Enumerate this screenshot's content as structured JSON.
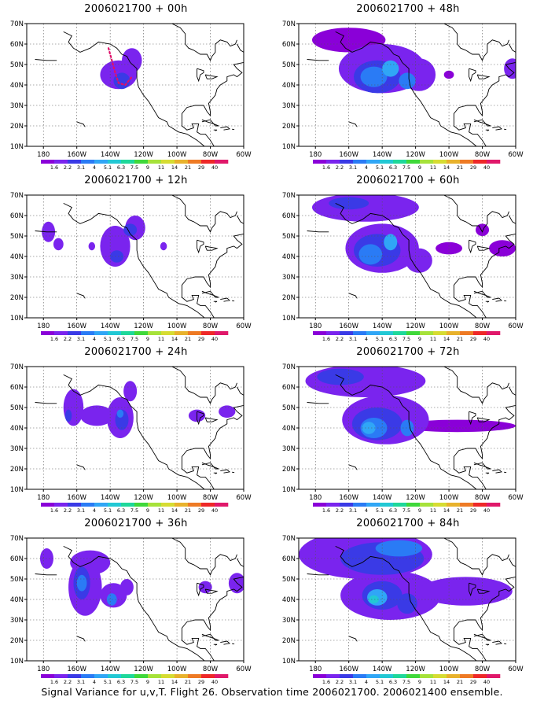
{
  "footer": "Signal Variance for u,v,T. Flight 26. Observation time 2006021700. 2006021400 ensemble.",
  "colors": {
    "contours": [
      "#8a00d8",
      "#7a24ee",
      "#3a3ae6",
      "#2a7bf5",
      "#30a6f6",
      "#22c8d4",
      "#1ed89a",
      "#3fd83a",
      "#a6e23a",
      "#d6dc32",
      "#e8b22c",
      "#ee7a24",
      "#ee2828",
      "#e0186a"
    ],
    "coast": "#000000",
    "grid": "#555555",
    "flight_track": "#e0106a"
  },
  "colorbar_labels": [
    "1.6",
    "2.2",
    "3.1",
    "4",
    "5.1",
    "6.3",
    "7.5",
    "9",
    "11",
    "14",
    "21",
    "29",
    "40"
  ],
  "axes": {
    "x_ticks": [
      "180",
      "160W",
      "140W",
      "120W",
      "100W",
      "80W",
      "60W"
    ],
    "y_ticks": [
      "70N",
      "60N",
      "50N",
      "40N",
      "30N",
      "20N",
      "10N"
    ]
  },
  "panels": [
    {
      "title": "2006021700 + 00h"
    },
    {
      "title": "2006021700 + 48h"
    },
    {
      "title": "2006021700 + 12h"
    },
    {
      "title": "2006021700 + 60h"
    },
    {
      "title": "2006021700 + 24h"
    },
    {
      "title": "2006021700 + 72h"
    },
    {
      "title": "2006021700 + 36h"
    },
    {
      "title": "2006021700 + 84h"
    }
  ],
  "chart_data": {
    "type": "heatmap",
    "xlim": [
      "180",
      "60W"
    ],
    "ylim": [
      "10N",
      "70N"
    ],
    "grid": true,
    "colorbar_levels": [
      1.6,
      2.2,
      3.1,
      4,
      5.1,
      6.3,
      7.5,
      9,
      11,
      14,
      21,
      29,
      40
    ],
    "panels": [
      {
        "title": "2006021700 + 00h",
        "blobs": [
          {
            "lon": -135,
            "lat": 45,
            "rlon": 11,
            "rlat": 7,
            "level": 1
          },
          {
            "lon": -127,
            "lat": 52,
            "rlon": 6,
            "rlat": 6,
            "level": 1
          },
          {
            "lon": -133,
            "lat": 42,
            "rlon": 5,
            "rlat": 4,
            "level": 2
          }
        ],
        "track": [
          [
            -141,
            58
          ],
          [
            -139,
            52
          ],
          [
            -137,
            46
          ],
          [
            -135,
            41
          ],
          [
            -131,
            40
          ],
          [
            -127,
            44
          ]
        ]
      },
      {
        "title": "2006021700 + 48h",
        "blobs": [
          {
            "lon": -160,
            "lat": 62,
            "rlon": 22,
            "rlat": 6,
            "level": 0
          },
          {
            "lon": -140,
            "lat": 48,
            "rlon": 26,
            "rlat": 12,
            "level": 1
          },
          {
            "lon": -118,
            "lat": 45,
            "rlon": 10,
            "rlat": 8,
            "level": 1
          },
          {
            "lon": -143,
            "lat": 44,
            "rlon": 14,
            "rlat": 8,
            "level": 2
          },
          {
            "lon": -145,
            "lat": 44,
            "rlon": 8,
            "rlat": 5,
            "level": 3
          },
          {
            "lon": -135,
            "lat": 48,
            "rlon": 5,
            "rlat": 4,
            "level": 4
          },
          {
            "lon": -125,
            "lat": 42,
            "rlon": 5,
            "rlat": 4,
            "level": 3
          },
          {
            "lon": -100,
            "lat": 45,
            "rlon": 3,
            "rlat": 2,
            "level": 0
          },
          {
            "lon": -62,
            "lat": 48,
            "rlon": 5,
            "rlat": 5,
            "level": 1
          }
        ]
      },
      {
        "title": "2006021700 + 12h",
        "blobs": [
          {
            "lon": -177,
            "lat": 52,
            "rlon": 4,
            "rlat": 5,
            "level": 1
          },
          {
            "lon": -171,
            "lat": 46,
            "rlon": 3,
            "rlat": 3,
            "level": 1
          },
          {
            "lon": -137,
            "lat": 45,
            "rlon": 9,
            "rlat": 10,
            "level": 1
          },
          {
            "lon": -125,
            "lat": 54,
            "rlon": 6,
            "rlat": 6,
            "level": 1
          },
          {
            "lon": -136,
            "lat": 40,
            "rlon": 4,
            "rlat": 3,
            "level": 2
          },
          {
            "lon": -128,
            "lat": 53,
            "rlon": 4,
            "rlat": 3,
            "level": 2
          },
          {
            "lon": -151,
            "lat": 45,
            "rlon": 2,
            "rlat": 2,
            "level": 1
          },
          {
            "lon": -108,
            "lat": 45,
            "rlon": 2,
            "rlat": 2,
            "level": 1
          }
        ]
      },
      {
        "title": "2006021700 + 60h",
        "blobs": [
          {
            "lon": -150,
            "lat": 64,
            "rlon": 32,
            "rlat": 7,
            "level": 1
          },
          {
            "lon": -140,
            "lat": 44,
            "rlon": 22,
            "rlat": 12,
            "level": 1
          },
          {
            "lon": -118,
            "lat": 38,
            "rlon": 8,
            "rlat": 6,
            "level": 1
          },
          {
            "lon": -143,
            "lat": 43,
            "rlon": 14,
            "rlat": 8,
            "level": 2
          },
          {
            "lon": -147,
            "lat": 41,
            "rlon": 7,
            "rlat": 5,
            "level": 3
          },
          {
            "lon": -135,
            "lat": 47,
            "rlon": 4,
            "rlat": 4,
            "level": 4
          },
          {
            "lon": -160,
            "lat": 66,
            "rlon": 12,
            "rlat": 3,
            "level": 2
          },
          {
            "lon": -100,
            "lat": 44,
            "rlon": 8,
            "rlat": 3,
            "level": 0
          },
          {
            "lon": -80,
            "lat": 53,
            "rlon": 4,
            "rlat": 3,
            "level": 0
          },
          {
            "lon": -68,
            "lat": 44,
            "rlon": 8,
            "rlat": 4,
            "level": 0
          }
        ]
      },
      {
        "title": "2006021700 + 24h",
        "blobs": [
          {
            "lon": -162,
            "lat": 50,
            "rlon": 6,
            "rlat": 9,
            "level": 1
          },
          {
            "lon": -148,
            "lat": 46,
            "rlon": 10,
            "rlat": 5,
            "level": 1
          },
          {
            "lon": -134,
            "lat": 45,
            "rlon": 8,
            "rlat": 10,
            "level": 1
          },
          {
            "lon": -128,
            "lat": 58,
            "rlon": 4,
            "rlat": 5,
            "level": 1
          },
          {
            "lon": -165,
            "lat": 46,
            "rlon": 2,
            "rlat": 3,
            "level": 2
          },
          {
            "lon": -133,
            "lat": 44,
            "rlon": 4,
            "rlat": 5,
            "level": 2
          },
          {
            "lon": -134,
            "lat": 47,
            "rlon": 2,
            "rlat": 2,
            "level": 3
          },
          {
            "lon": -88,
            "lat": 46,
            "rlon": 5,
            "rlat": 3,
            "level": 1
          },
          {
            "lon": -70,
            "lat": 48,
            "rlon": 5,
            "rlat": 3,
            "level": 1
          }
        ]
      },
      {
        "title": "2006021700 + 72h",
        "blobs": [
          {
            "lon": -150,
            "lat": 63,
            "rlon": 36,
            "rlat": 8,
            "level": 1
          },
          {
            "lon": -138,
            "lat": 44,
            "rlon": 26,
            "rlat": 12,
            "level": 1
          },
          {
            "lon": -95,
            "lat": 41,
            "rlon": 35,
            "rlat": 3,
            "level": 0
          },
          {
            "lon": -143,
            "lat": 42,
            "rlon": 15,
            "rlat": 8,
            "level": 2
          },
          {
            "lon": -145,
            "lat": 40,
            "rlon": 8,
            "rlat": 5,
            "level": 3
          },
          {
            "lon": -148,
            "lat": 40,
            "rlon": 4,
            "rlat": 3,
            "level": 4
          },
          {
            "lon": -165,
            "lat": 65,
            "rlon": 14,
            "rlat": 4,
            "level": 2
          },
          {
            "lon": -125,
            "lat": 40,
            "rlon": 4,
            "rlat": 4,
            "level": 3
          }
        ]
      },
      {
        "title": "2006021700 + 36h",
        "blobs": [
          {
            "lon": -178,
            "lat": 60,
            "rlon": 4,
            "rlat": 5,
            "level": 1
          },
          {
            "lon": -152,
            "lat": 58,
            "rlon": 12,
            "rlat": 6,
            "level": 1
          },
          {
            "lon": -155,
            "lat": 46,
            "rlon": 10,
            "rlat": 14,
            "level": 1
          },
          {
            "lon": -138,
            "lat": 42,
            "rlon": 8,
            "rlat": 6,
            "level": 1
          },
          {
            "lon": -157,
            "lat": 48,
            "rlon": 5,
            "rlat": 8,
            "level": 2
          },
          {
            "lon": -157,
            "lat": 48,
            "rlon": 3,
            "rlat": 4,
            "level": 3
          },
          {
            "lon": -139,
            "lat": 40,
            "rlon": 3,
            "rlat": 3,
            "level": 3
          },
          {
            "lon": -130,
            "lat": 46,
            "rlon": 4,
            "rlat": 4,
            "level": 1
          },
          {
            "lon": -83,
            "lat": 46,
            "rlon": 4,
            "rlat": 3,
            "level": 1
          },
          {
            "lon": -64,
            "lat": 48,
            "rlon": 5,
            "rlat": 5,
            "level": 1
          }
        ]
      },
      {
        "title": "2006021700 + 84h",
        "blobs": [
          {
            "lon": -150,
            "lat": 62,
            "rlon": 40,
            "rlat": 12,
            "level": 1
          },
          {
            "lon": -135,
            "lat": 42,
            "rlon": 30,
            "rlat": 12,
            "level": 1
          },
          {
            "lon": -90,
            "lat": 44,
            "rlon": 28,
            "rlat": 7,
            "level": 1
          },
          {
            "lon": -140,
            "lat": 60,
            "rlon": 25,
            "rlat": 8,
            "level": 2
          },
          {
            "lon": -130,
            "lat": 65,
            "rlon": 14,
            "rlat": 4,
            "level": 3
          },
          {
            "lon": -140,
            "lat": 42,
            "rlon": 12,
            "rlat": 7,
            "level": 2
          },
          {
            "lon": -143,
            "lat": 41,
            "rlon": 6,
            "rlat": 4,
            "level": 4
          },
          {
            "lon": -145,
            "lat": 40,
            "rlon": 3,
            "rlat": 2,
            "level": 5
          },
          {
            "lon": -125,
            "lat": 38,
            "rlon": 6,
            "rlat": 5,
            "level": 2
          }
        ]
      }
    ]
  }
}
